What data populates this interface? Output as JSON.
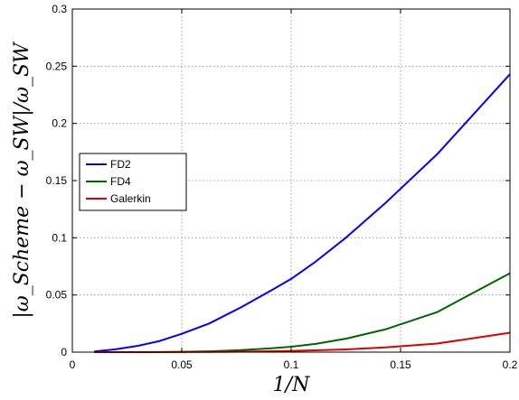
{
  "chart_data": {
    "type": "line",
    "title": "",
    "xlabel": "1/N",
    "ylabel": "|ω_Scheme − ω_SW|/ω_SW",
    "xlim": [
      0,
      0.2
    ],
    "ylim": [
      0,
      0.3
    ],
    "xticks": [
      0,
      0.05,
      0.1,
      0.15,
      0.2
    ],
    "xtick_labels": [
      "0",
      "0.05",
      "0.1",
      "0.15",
      "0.2"
    ],
    "yticks": [
      0,
      0.05,
      0.1,
      0.15,
      0.2,
      0.25,
      0.3
    ],
    "ytick_labels": [
      "0",
      "0.05",
      "0.1",
      "0.15",
      "0.2",
      "0.25",
      "0.3"
    ],
    "grid": true,
    "legend_position": "center-left",
    "series": [
      {
        "name": "FD2",
        "color": "#0000ff",
        "x": [
          0.01,
          0.02,
          0.03,
          0.04,
          0.05,
          0.0625,
          0.0769,
          0.0909,
          0.1,
          0.1111,
          0.125,
          0.1429,
          0.1667,
          0.2
        ],
        "y": [
          0.0006,
          0.0025,
          0.0055,
          0.0098,
          0.016,
          0.025,
          0.039,
          0.054,
          0.064,
          0.079,
          0.1,
          0.13,
          0.173,
          0.243
        ]
      },
      {
        "name": "FD4",
        "color": "#006400",
        "x": [
          0.01,
          0.02,
          0.03,
          0.04,
          0.05,
          0.0625,
          0.0769,
          0.0909,
          0.1,
          0.1111,
          0.125,
          0.1429,
          0.1667,
          0.2
        ],
        "y": [
          0.0,
          0.0,
          0.0,
          0.0001,
          0.0003,
          0.0007,
          0.0017,
          0.0034,
          0.0047,
          0.0072,
          0.0118,
          0.0198,
          0.035,
          0.069
        ]
      },
      {
        "name": "Galerkin",
        "color": "#dd0000",
        "x": [
          0.01,
          0.02,
          0.03,
          0.04,
          0.05,
          0.0625,
          0.0769,
          0.0909,
          0.1,
          0.1111,
          0.125,
          0.1429,
          0.1667,
          0.2
        ],
        "y": [
          0.0,
          0.0,
          0.0,
          0.0,
          0.0001,
          0.0002,
          0.0004,
          0.0008,
          0.0011,
          0.0016,
          0.0024,
          0.0041,
          0.0075,
          0.017
        ]
      }
    ]
  }
}
